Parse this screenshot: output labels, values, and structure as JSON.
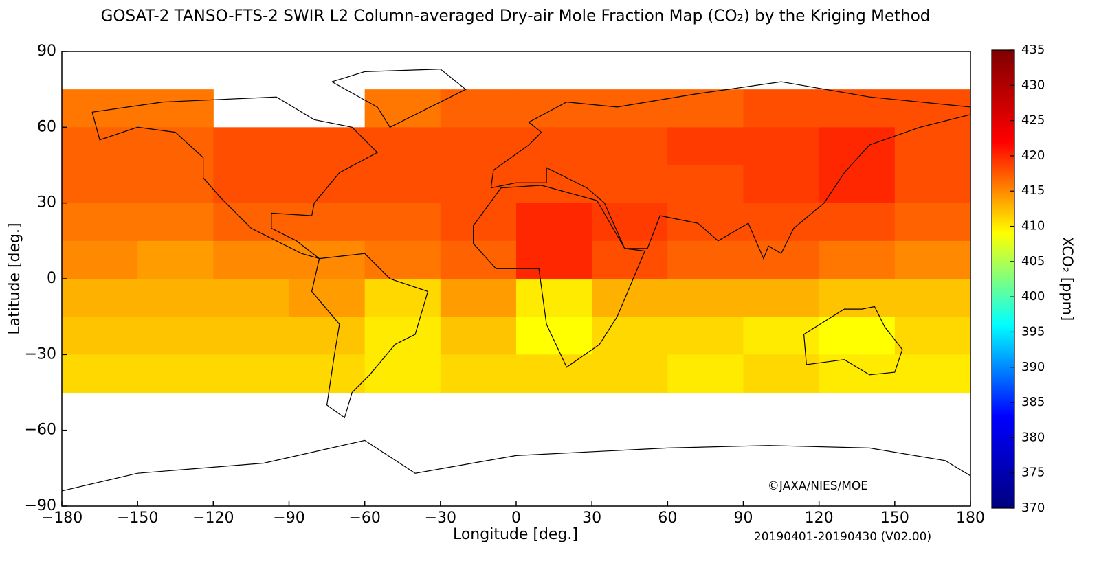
{
  "chart_data": {
    "type": "heatmap",
    "title": "GOSAT-2 TANSO-FTS-2 SWIR L2 Column-averaged Dry-air Mole Fraction Map (CO₂) by the Kriging Method",
    "xlabel": "Longitude [deg.]",
    "ylabel": "Latitude [deg.]",
    "colorbar_label": "XCO₂ [ppm]",
    "copyright": "©JAXA/NIES/MOE",
    "period": "20190401-20190430 (V02.00)",
    "lon_bins": [
      -180,
      -150,
      -120,
      -90,
      -60,
      -30,
      0,
      30,
      60,
      90,
      120,
      150,
      180
    ],
    "lat_bins": [
      90,
      75,
      60,
      45,
      30,
      15,
      0,
      -15,
      -30,
      -45,
      -60,
      -75,
      -90
    ],
    "values": [
      [
        null,
        null,
        null,
        null,
        null,
        null,
        null,
        null,
        null,
        null,
        null,
        null
      ],
      [
        416,
        416,
        null,
        null,
        416,
        417,
        417,
        417,
        417,
        418,
        418,
        418
      ],
      [
        417,
        417,
        418,
        418,
        418,
        418,
        418,
        418,
        419,
        419,
        420,
        418
      ],
      [
        417,
        417,
        418,
        418,
        418,
        418,
        418,
        418,
        418,
        419,
        420,
        418
      ],
      [
        416,
        416,
        417,
        417,
        417,
        418,
        420,
        419,
        418,
        418,
        418,
        417
      ],
      [
        415,
        414,
        415,
        415,
        416,
        417,
        420,
        418,
        417,
        417,
        416,
        415
      ],
      [
        413,
        413,
        413,
        414,
        411,
        414,
        410,
        413,
        413,
        413,
        412,
        412
      ],
      [
        412,
        412,
        412,
        412,
        410,
        412,
        409,
        411,
        411,
        410,
        409,
        411
      ],
      [
        411,
        411,
        411,
        411,
        410,
        411,
        411,
        411,
        410,
        411,
        410,
        410
      ],
      [
        null,
        null,
        null,
        null,
        null,
        null,
        null,
        null,
        null,
        null,
        null,
        null
      ],
      [
        null,
        null,
        null,
        null,
        null,
        null,
        null,
        null,
        null,
        null,
        null,
        null
      ],
      [
        null,
        null,
        null,
        null,
        null,
        null,
        null,
        null,
        null,
        null,
        null,
        null
      ]
    ],
    "xlim": [
      -180,
      180
    ],
    "ylim": [
      -90,
      90
    ],
    "xticks": [
      {
        "value": -180,
        "label": "−180"
      },
      {
        "value": -150,
        "label": "−150"
      },
      {
        "value": -120,
        "label": "−120"
      },
      {
        "value": -90,
        "label": "−90"
      },
      {
        "value": -60,
        "label": "−60"
      },
      {
        "value": -30,
        "label": "−30"
      },
      0,
      30,
      60,
      90,
      120,
      150,
      180
    ],
    "yticks": [
      {
        "value": -90,
        "label": "−90"
      },
      {
        "value": -60,
        "label": "−60"
      },
      {
        "value": -30,
        "label": "−30"
      },
      0,
      30,
      60,
      90
    ],
    "clim": [
      370,
      435
    ],
    "cticks": [
      370,
      375,
      380,
      385,
      390,
      395,
      400,
      405,
      410,
      415,
      420,
      425,
      430,
      435
    ],
    "colormap": [
      "#00007f",
      "#0000ff",
      "#00ffff",
      "#ffff00",
      "#ff0000",
      "#7f0000"
    ]
  }
}
